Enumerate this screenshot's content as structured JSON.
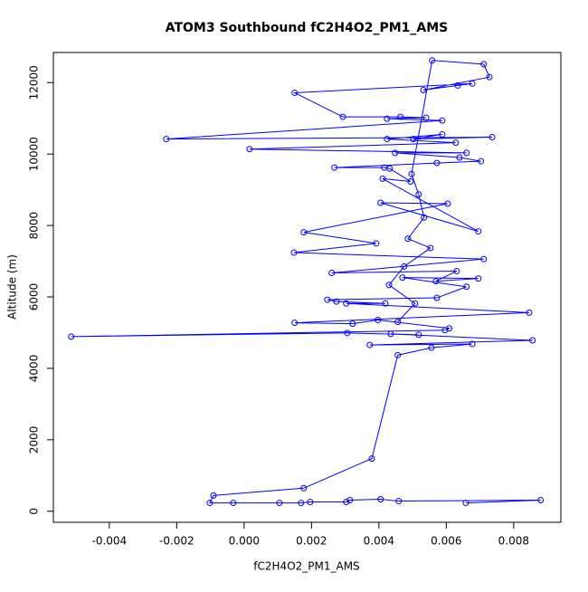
{
  "chart_data": {
    "type": "line",
    "title": "ATOM3 Southbound fC2H4O2_PM1_AMS",
    "x_label": "fC2H4O2_PM1_AMS",
    "y_label": "Altitude (m)",
    "markers": true,
    "color": "#0000ff",
    "xlim": [
      -0.00566,
      0.0094
    ],
    "ylim": [
      -310,
      12843
    ],
    "xticks": [
      -0.004,
      -0.002,
      {
        "value": 0,
        "label": "0.000"
      },
      0.002,
      0.004,
      0.006,
      0.008
    ],
    "yticks": [
      0,
      2000,
      4000,
      6000,
      8000,
      10000,
      12000
    ],
    "x": [
      0.00658,
      0.0088,
      0.00459,
      0.00405,
      0.00314,
      0.00303,
      0.00196,
      0.00169,
      0.00105,
      -0.00032,
      -0.00102,
      -0.00091,
      0.00177,
      0.00379,
      0.00456,
      0.00556,
      0.00677,
      0.00373,
      0.00856,
      0.00435,
      0.00518,
      0.00306,
      -0.00513,
      0.00596,
      0.00609,
      0.00397,
      0.00322,
      0.0015,
      0.00846,
      0.00303,
      0.00419,
      0.00274,
      0.00247,
      0.00572,
      0.0066,
      0.0047,
      0.00695,
      0.00569,
      0.00631,
      0.0026,
      0.00711,
      0.00148,
      0.00392,
      0.00177,
      0.00604,
      0.00405,
      0.00695,
      0.00411,
      0.00494,
      0.00432,
      0.00416,
      0.00268,
      0.00572,
      0.00703,
      0.00639,
      0.00448,
      0.0066,
      0.00016,
      0.00628,
      0.00424,
      0.00588,
      0.00502,
      0.00736,
      -0.00231,
      0.00588,
      0.00424,
      0.0054,
      0.00464,
      0.00293,
      0.0015,
      0.00677,
      0.00634,
      0.00532,
      0.00728,
      0.00711,
      0.00558,
      0.00497,
      0.00518,
      0.00534,
      0.00486,
      0.00553,
      0.00475,
      0.0043,
      0.00507,
      0.00456
    ],
    "values": [
      233,
      310,
      284,
      336,
      310,
      259,
      259,
      233,
      233,
      233,
      233,
      440,
      646,
      1474,
      4370,
      4577,
      4681,
      4655,
      4784,
      4965,
      4939,
      4991,
      4888,
      5068,
      5120,
      5353,
      5249,
      5275,
      5560,
      5818,
      5818,
      5870,
      5922,
      5974,
      6284,
      6543,
      6517,
      6439,
      6724,
      6672,
      7060,
      7241,
      7500,
      7810,
      8611,
      8637,
      7836,
      9310,
      9232,
      9594,
      9620,
      9620,
      9749,
      9800,
      9904,
      10034,
      10034,
      10137,
      10318,
      10421,
      10551,
      10421,
      10473,
      10421,
      10938,
      10990,
      11016,
      11042,
      11042,
      11714,
      11973,
      11920,
      11792,
      12154,
      12516,
      12620,
      9439,
      8870,
      8224,
      7629,
      7370,
      6853,
      6336,
      5818,
      5301
    ]
  }
}
